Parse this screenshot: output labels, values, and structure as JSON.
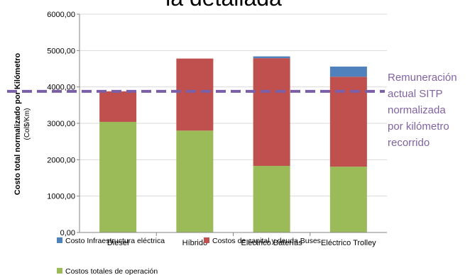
{
  "heading": "la detallada",
  "colors": {
    "infra": "#4f81bd",
    "capital": "#c0504d",
    "operacion": "#9bbb59",
    "reference": "#7a5fa8",
    "reference_dash": "#3f3f8f",
    "annotation": "#8064a2"
  },
  "annotation_lines": [
    "Remuneración",
    "actual SITP",
    "normalizada",
    "por kilómetro",
    "recorrido"
  ],
  "chart_data": {
    "type": "bar",
    "stacked": true,
    "categories": [
      "Diesel",
      "Híbrido",
      "Eléctrico Baterías",
      "Eléctrico Trolley"
    ],
    "series": [
      {
        "name": "Costos totales de operación",
        "color": "#9bbb59",
        "values": [
          3040,
          2800,
          1830,
          1810
        ]
      },
      {
        "name": "Costos de capital y deuda Buses",
        "color": "#c0504d",
        "values": [
          840,
          1980,
          2960,
          2470
        ]
      },
      {
        "name": "Costo Infraestructura eléctrica",
        "color": "#4f81bd",
        "values": [
          0,
          0,
          50,
          280
        ]
      }
    ],
    "ylabel": "Costo total normalizado por Kilómetro",
    "ylabel_unit": "(Col$/Km)",
    "ylim": [
      0,
      6000
    ],
    "yticks": [
      0,
      1000,
      2000,
      3000,
      4000,
      5000,
      6000
    ],
    "ytick_labels": [
      "0,00",
      "1000,00",
      "2000,00",
      "3000,00",
      "4000,00",
      "5000,00",
      "6000,00"
    ],
    "reference_value": 3880,
    "grid": true,
    "legend_position": "bottom",
    "legend": [
      {
        "name": "Costo Infraestructura eléctrica",
        "color": "#4f81bd"
      },
      {
        "name": "Costos de capital y deuda Buses",
        "color": "#c0504d"
      },
      {
        "name": "Costos totales de operación",
        "color": "#9bbb59"
      }
    ]
  }
}
